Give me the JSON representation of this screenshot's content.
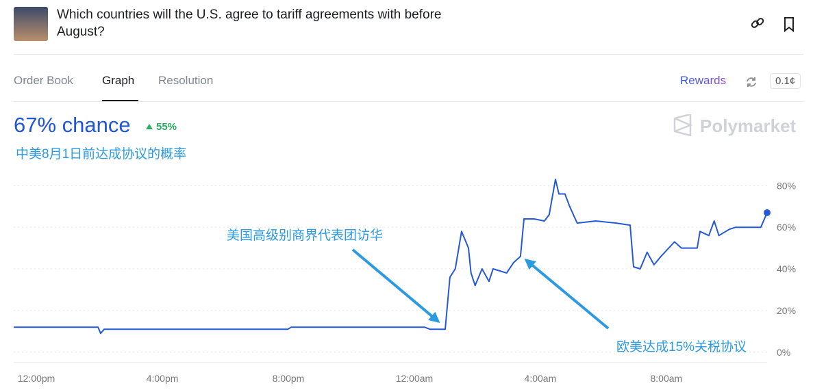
{
  "header": {
    "title": "Which countries will the U.S. agree to tariff agreements with before August?"
  },
  "tabs": [
    "Order Book",
    "Graph",
    "Resolution"
  ],
  "rewards": "Rewards",
  "price": "0.1¢",
  "chance": "67% chance",
  "change": "55%",
  "brand": "Polymarket",
  "chart_data": {
    "type": "line",
    "title": "中美8月1日前达成协议的概率",
    "x": [
      -0.72,
      1.96,
      2.04,
      2.15,
      5.37,
      7.98,
      8.09,
      12.33,
      12.5,
      12.98,
      13.13,
      13.3,
      13.5,
      13.72,
      13.8,
      13.93,
      14.15,
      14.37,
      14.5,
      14.93,
      15.15,
      15.37,
      15.48,
      15.8,
      16.13,
      16.28,
      16.48,
      16.59,
      16.78,
      16.93,
      17.17,
      17.76,
      18.41,
      18.85,
      18.96,
      19.17,
      19.39,
      19.61,
      19.83,
      20.26,
      20.48,
      20.98,
      21.07,
      21.35,
      21.52,
      21.67,
      22.0,
      22.2,
      22.7,
      23.0,
      23.2
    ],
    "values": [
      12,
      12,
      9,
      11,
      11,
      11,
      12,
      12,
      11,
      11,
      36,
      40,
      58,
      50,
      38,
      32,
      40,
      34,
      40,
      38,
      43,
      46,
      64,
      64,
      63,
      66,
      83,
      76,
      76,
      70,
      62,
      63,
      62,
      61,
      41,
      40,
      48,
      42,
      46,
      53,
      50,
      50,
      58,
      56,
      63,
      56,
      59,
      60,
      60,
      60,
      67
    ],
    "color": "#2458d6",
    "xlim": [
      -0.72,
      23.2
    ],
    "xticks": [
      {
        "value": 0,
        "label": "12:00pm"
      },
      {
        "value": 4,
        "label": "4:00pm"
      },
      {
        "value": 8,
        "label": "8:00pm"
      },
      {
        "value": 12,
        "label": "12:00am"
      },
      {
        "value": 16,
        "label": "4:00am"
      },
      {
        "value": 20,
        "label": "8:00am"
      }
    ],
    "ylim": [
      -5,
      87
    ],
    "yticks": [
      {
        "value": 0,
        "label": "0%"
      },
      {
        "value": 20,
        "label": "20%"
      },
      {
        "value": 40,
        "label": "40%"
      },
      {
        "value": 60,
        "label": "60%"
      },
      {
        "value": 80,
        "label": "80%"
      }
    ],
    "grid": true,
    "annotations": [
      "美国高级别商界代表团访华",
      "欧美达成15%关税协议"
    ]
  }
}
